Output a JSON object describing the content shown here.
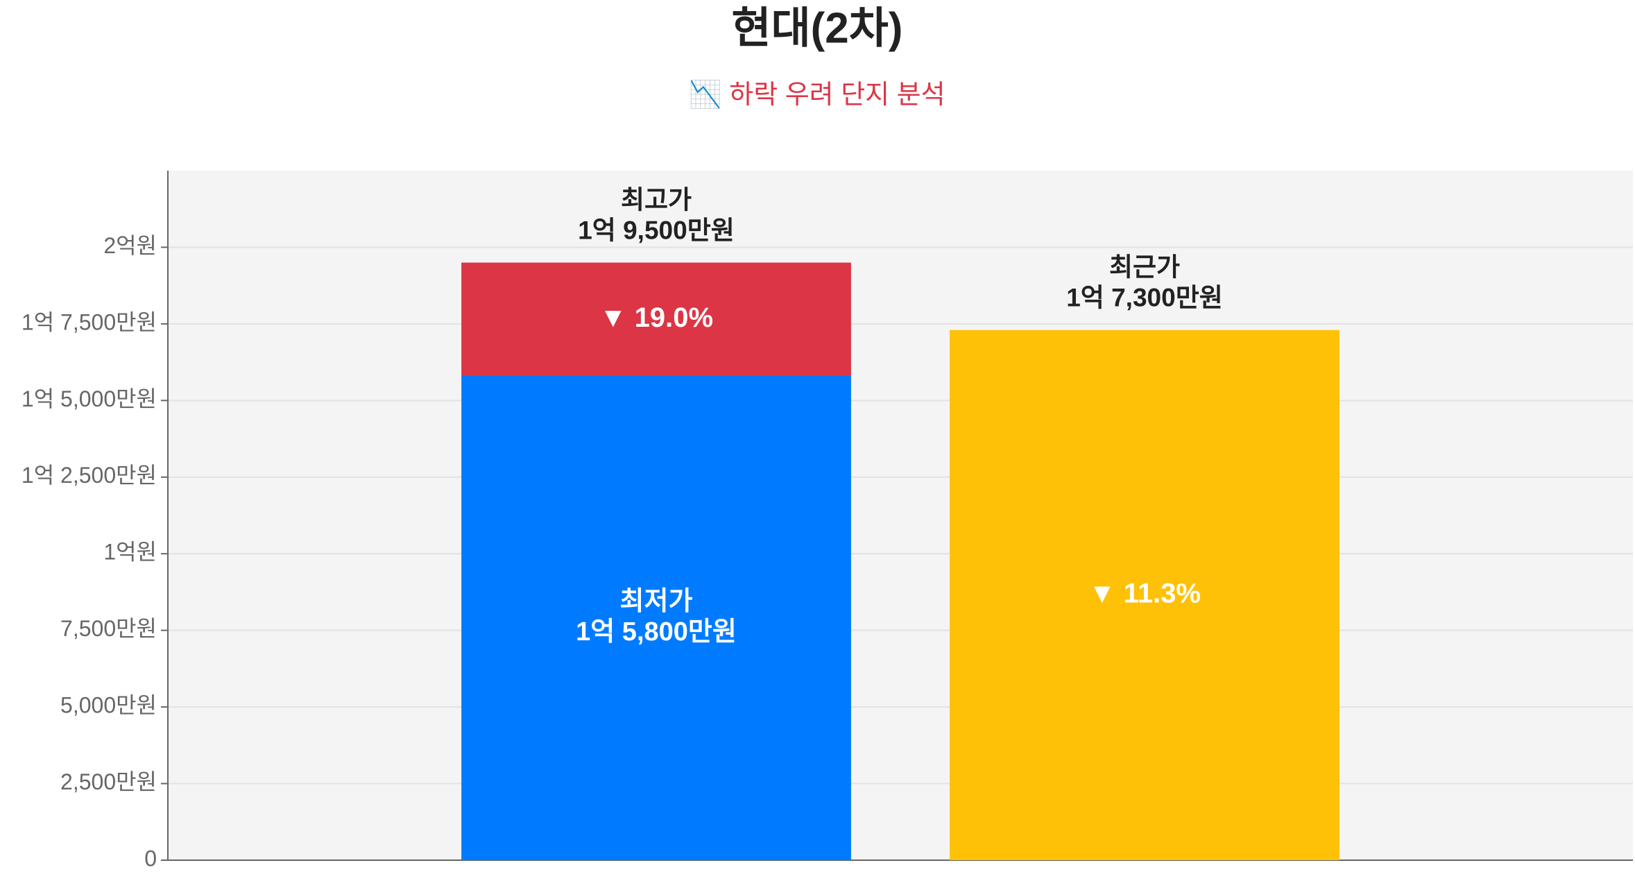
{
  "chart_data": {
    "type": "stacked-bar",
    "title": "현대(2차)",
    "subtitle": "📉 하락 우려 단지 분석",
    "categories": [
      null,
      null
    ],
    "series": [
      {
        "name": "최저가",
        "color": "#007bff",
        "values": [
          15800,
          null
        ],
        "value_labels": [
          "1억 5,800만원",
          null
        ]
      },
      {
        "color": "#dc3545",
        "values": [
          3700,
          null
        ],
        "annotations": [
          "▼ 19.0%",
          null
        ]
      },
      {
        "name": "최근가",
        "color": "#ffc107",
        "values": [
          null,
          17300
        ],
        "value_labels": [
          null,
          "1억 7,300만원"
        ],
        "annotations": [
          null,
          "▼ 11.3%"
        ]
      }
    ],
    "top_labels": [
      {
        "name": "최고가",
        "label": "1억 9,500만원"
      }
    ],
    "ylim": [
      0,
      22500
    ],
    "yticks": [
      {
        "value": 0,
        "label": "0"
      },
      {
        "value": 2500,
        "label": "2,500만원"
      },
      {
        "value": 5000,
        "label": "5,000만원"
      },
      {
        "value": 7500,
        "label": "7,500만원"
      },
      {
        "value": 10000,
        "label": "1억원"
      },
      {
        "value": 12500,
        "label": "1억 2,500만원"
      },
      {
        "value": 15000,
        "label": "1억 5,000만원"
      },
      {
        "value": 17500,
        "label": "1억 7,500만원"
      },
      {
        "value": 20000,
        "label": "2억원"
      }
    ],
    "grid": true
  }
}
